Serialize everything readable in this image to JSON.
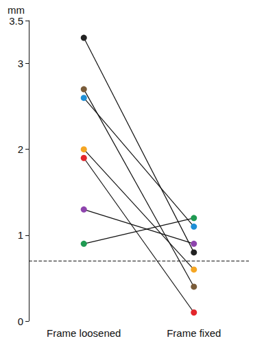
{
  "chart_data": {
    "type": "line",
    "y_label": "mm",
    "categories": [
      "Frame loosened",
      "Frame fixed"
    ],
    "series": [
      {
        "color": "#222222",
        "values": [
          3.3,
          0.8
        ]
      },
      {
        "color": "#7a5c3a",
        "values": [
          2.7,
          0.4
        ]
      },
      {
        "color": "#1f8fd6",
        "values": [
          2.6,
          1.1
        ]
      },
      {
        "color": "#f5a623",
        "values": [
          2.0,
          0.6
        ]
      },
      {
        "color": "#e3262b",
        "values": [
          1.9,
          0.1
        ]
      },
      {
        "color": "#8e44ad",
        "values": [
          1.3,
          0.9
        ]
      },
      {
        "color": "#1f9a52",
        "values": [
          0.9,
          1.2
        ]
      }
    ],
    "marker": "circle",
    "line_style": "solid",
    "reference_line": {
      "value": 0.7,
      "line_style": "dashed"
    },
    "ylim": [
      0,
      3.5
    ],
    "yticks": [
      0,
      1,
      2,
      3
    ],
    "grid": false
  }
}
